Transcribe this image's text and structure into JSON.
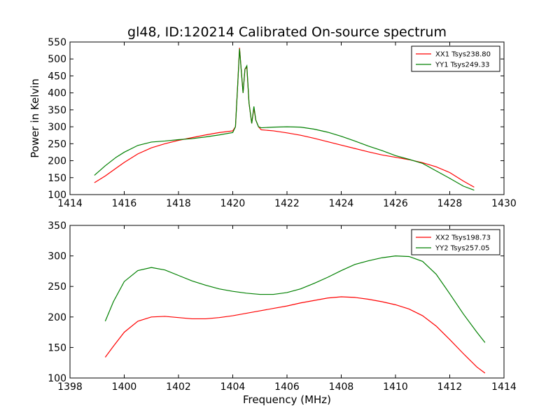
{
  "chart_data": [
    {
      "type": "line",
      "title": "gl48, ID:120214 Calibrated On-source spectrum",
      "xlabel": "",
      "ylabel": "Power in Kelvin",
      "xlim": [
        1414,
        1430
      ],
      "ylim": [
        100,
        550
      ],
      "xticks": [
        1414,
        1416,
        1418,
        1420,
        1422,
        1424,
        1426,
        1428,
        1430
      ],
      "yticks": [
        100,
        150,
        200,
        250,
        300,
        350,
        400,
        450,
        500,
        550
      ],
      "legend_position": "top-right",
      "series": [
        {
          "name": "XX1 Tsys238.80",
          "color": "#ff0000",
          "x": [
            1414.9,
            1415.3,
            1415.7,
            1416.0,
            1416.5,
            1417.0,
            1417.5,
            1418.0,
            1418.5,
            1419.0,
            1419.5,
            1420.0,
            1420.1,
            1420.18,
            1420.25,
            1420.32,
            1420.38,
            1420.45,
            1420.52,
            1420.6,
            1420.7,
            1420.78,
            1420.85,
            1420.95,
            1421.05,
            1421.5,
            1422.0,
            1422.5,
            1423.0,
            1423.5,
            1424.0,
            1424.5,
            1425.0,
            1425.5,
            1426.0,
            1426.5,
            1427.0,
            1427.5,
            1428.0,
            1428.5,
            1428.9
          ],
          "values": [
            135,
            155,
            178,
            195,
            220,
            238,
            250,
            260,
            268,
            276,
            283,
            288,
            300,
            420,
            533,
            460,
            400,
            470,
            475,
            370,
            310,
            355,
            320,
            300,
            291,
            288,
            282,
            275,
            266,
            256,
            246,
            236,
            226,
            217,
            210,
            203,
            194,
            182,
            165,
            140,
            122
          ]
        },
        {
          "name": "YY1 Tsys249.33",
          "color": "#008000",
          "x": [
            1414.9,
            1415.3,
            1415.7,
            1416.0,
            1416.5,
            1417.0,
            1417.5,
            1418.0,
            1418.5,
            1419.0,
            1419.5,
            1420.0,
            1420.1,
            1420.18,
            1420.25,
            1420.32,
            1420.38,
            1420.45,
            1420.52,
            1420.6,
            1420.7,
            1420.78,
            1420.85,
            1420.95,
            1421.05,
            1421.5,
            1422.0,
            1422.5,
            1423.0,
            1423.5,
            1424.0,
            1424.5,
            1425.0,
            1425.5,
            1426.0,
            1426.5,
            1427.0,
            1427.5,
            1428.0,
            1428.5,
            1428.9
          ],
          "values": [
            157,
            185,
            210,
            225,
            245,
            255,
            258,
            262,
            265,
            270,
            276,
            283,
            300,
            420,
            530,
            460,
            400,
            470,
            480,
            370,
            310,
            360,
            320,
            300,
            297,
            299,
            300,
            299,
            293,
            284,
            272,
            258,
            243,
            230,
            215,
            204,
            192,
            170,
            148,
            125,
            113
          ]
        }
      ]
    },
    {
      "type": "line",
      "title": "",
      "xlabel": "Frequency (MHz)",
      "ylabel": "",
      "xlim": [
        1398,
        1414
      ],
      "ylim": [
        100,
        350
      ],
      "xticks": [
        1398,
        1400,
        1402,
        1404,
        1406,
        1408,
        1410,
        1412,
        1414
      ],
      "yticks": [
        100,
        150,
        200,
        250,
        300,
        350
      ],
      "legend_position": "top-right",
      "series": [
        {
          "name": "XX2 Tsys198.73",
          "color": "#ff0000",
          "x": [
            1399.3,
            1399.6,
            1400.0,
            1400.5,
            1401.0,
            1401.5,
            1402.0,
            1402.5,
            1403.0,
            1403.5,
            1404.0,
            1404.5,
            1405.0,
            1405.5,
            1406.0,
            1406.5,
            1407.0,
            1407.5,
            1408.0,
            1408.5,
            1409.0,
            1409.5,
            1410.0,
            1410.5,
            1411.0,
            1411.5,
            1412.0,
            1412.5,
            1413.0,
            1413.3
          ],
          "values": [
            134,
            152,
            175,
            193,
            200,
            201,
            199,
            197,
            197,
            199,
            202,
            206,
            210,
            214,
            218,
            223,
            227,
            231,
            233,
            232,
            229,
            225,
            220,
            213,
            202,
            185,
            163,
            140,
            118,
            108
          ]
        },
        {
          "name": "YY2 Tsys257.05",
          "color": "#008000",
          "x": [
            1399.3,
            1399.6,
            1400.0,
            1400.5,
            1401.0,
            1401.5,
            1402.0,
            1402.5,
            1403.0,
            1403.5,
            1404.0,
            1404.5,
            1405.0,
            1405.5,
            1406.0,
            1406.5,
            1407.0,
            1407.5,
            1408.0,
            1408.5,
            1409.0,
            1409.5,
            1410.0,
            1410.5,
            1411.0,
            1411.5,
            1412.0,
            1412.5,
            1413.0,
            1413.3
          ],
          "values": [
            193,
            225,
            258,
            276,
            281,
            277,
            268,
            259,
            252,
            246,
            242,
            239,
            237,
            237,
            240,
            246,
            255,
            265,
            276,
            286,
            292,
            297,
            300,
            299,
            291,
            270,
            238,
            205,
            175,
            158
          ]
        }
      ]
    }
  ]
}
